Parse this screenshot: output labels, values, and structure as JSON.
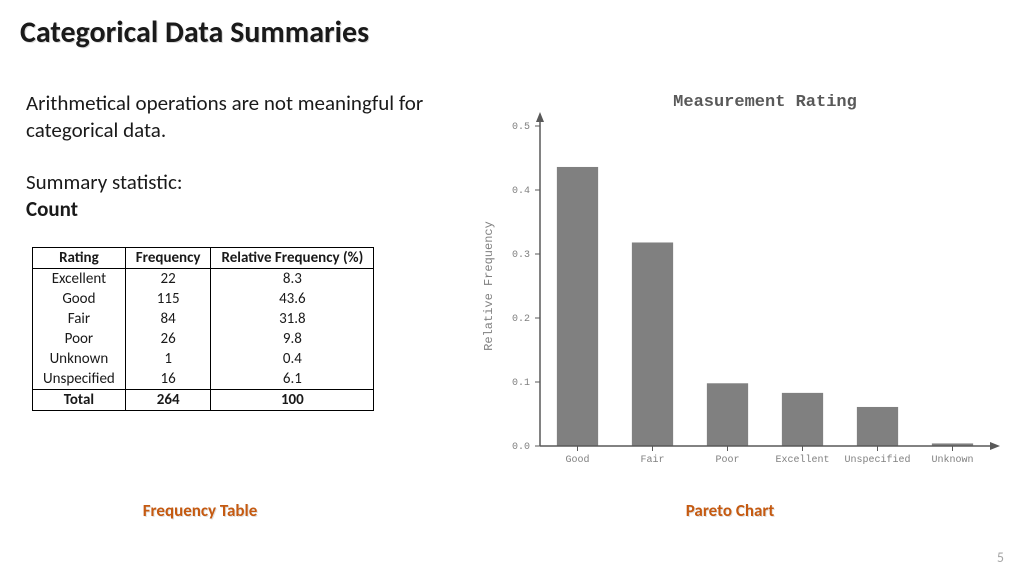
{
  "title": "Categorical Data Summaries",
  "body": {
    "p1": "Arithmetical operations are not meaningful for categorical data.",
    "p2": "Summary statistic:",
    "p2_bold": "Count"
  },
  "table": {
    "columns": [
      "Rating",
      "Frequency",
      "Relative Frequency (%)"
    ],
    "rows": [
      [
        "Excellent",
        "22",
        "8.3"
      ],
      [
        "Good",
        "115",
        "43.6"
      ],
      [
        "Fair",
        "84",
        "31.8"
      ],
      [
        "Poor",
        "26",
        "9.8"
      ],
      [
        "Unknown",
        "1",
        "0.4"
      ],
      [
        "Unspecified",
        "16",
        "6.1"
      ]
    ],
    "total": [
      "Total",
      "264",
      "100"
    ]
  },
  "captions": {
    "table": "Frequency Table",
    "chart": "Pareto Chart"
  },
  "chart": {
    "type": "bar",
    "title": "Measurement Rating",
    "title_fontsize": 17,
    "title_color": "#595959",
    "title_font": "Consolas, 'Courier New', monospace",
    "ylabel": "Relative Frequency",
    "label_fontsize": 12,
    "label_color": "#808080",
    "label_font": "Consolas, 'Courier New', monospace",
    "categories": [
      "Good",
      "Fair",
      "Poor",
      "Excellent",
      "Unspecified",
      "Unknown"
    ],
    "values": [
      0.436,
      0.318,
      0.098,
      0.083,
      0.061,
      0.004
    ],
    "ylim": [
      0.0,
      0.5
    ],
    "yticks": [
      0.0,
      0.1,
      0.2,
      0.3,
      0.4,
      0.5
    ],
    "bar_color": "#808080",
    "axis_color": "#595959",
    "tick_color": "#808080",
    "tick_font": "Consolas, 'Courier New', monospace",
    "tick_fontsize": 10,
    "background_color": "#ffffff",
    "bar_width": 0.55
  },
  "page_number": "5"
}
